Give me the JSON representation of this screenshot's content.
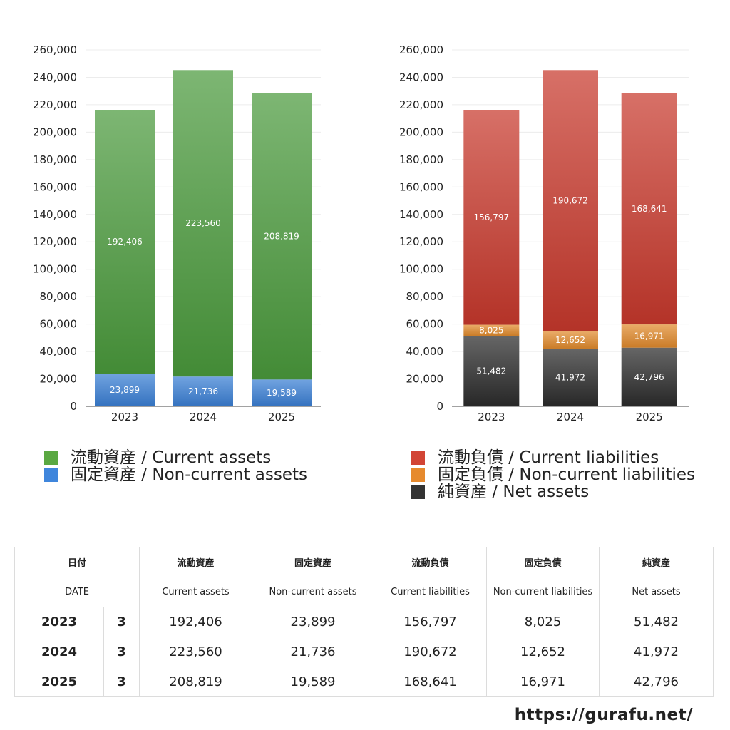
{
  "chart_data": [
    {
      "type": "bar",
      "stacked": true,
      "categories": [
        "2023",
        "2024",
        "2025"
      ],
      "ylim": [
        0,
        260000
      ],
      "yticks": [
        "0",
        "20,000",
        "40,000",
        "60,000",
        "80,000",
        "100,000",
        "120,000",
        "140,000",
        "160,000",
        "180,000",
        "200,000",
        "220,000",
        "240,000",
        "260,000"
      ],
      "grid": true,
      "series": [
        {
          "name": "固定資産 / Non-current assets",
          "values": [
            23899,
            21736,
            19589
          ],
          "labels": [
            "23,899",
            "21,736",
            "19,589"
          ],
          "color": "#3a7fd4"
        },
        {
          "name": "流動資産 / Current assets",
          "values": [
            192406,
            223560,
            208819
          ],
          "labels": [
            "192,406",
            "223,560",
            "208,819"
          ],
          "color": "#4a9a3c"
        }
      ]
    },
    {
      "type": "bar",
      "stacked": true,
      "categories": [
        "2023",
        "2024",
        "2025"
      ],
      "ylim": [
        0,
        260000
      ],
      "yticks": [
        "0",
        "20,000",
        "40,000",
        "60,000",
        "80,000",
        "100,000",
        "120,000",
        "140,000",
        "160,000",
        "180,000",
        "200,000",
        "220,000",
        "240,000",
        "260,000"
      ],
      "grid": true,
      "series": [
        {
          "name": "純資産 / Net assets",
          "values": [
            51482,
            41972,
            42796
          ],
          "labels": [
            "51,482",
            "41,972",
            "42,796"
          ],
          "color": "#2b2b2b"
        },
        {
          "name": "固定負債 / Non-current liabilities",
          "values": [
            8025,
            12652,
            16971
          ],
          "labels": [
            "8,025",
            "12,652",
            "16,971"
          ],
          "color": "#e08a2c"
        },
        {
          "name": "流動負債 / Current liabilities",
          "values": [
            156797,
            190672,
            168641
          ],
          "labels": [
            "156,797",
            "190,672",
            "168,641"
          ],
          "color": "#c8392c"
        }
      ]
    }
  ],
  "legend_left": [
    {
      "label": "流動資産 / Current assets",
      "color": "#5aa842"
    },
    {
      "label": "固定資産 / Non-current assets",
      "color": "#3f86dc"
    }
  ],
  "legend_right": [
    {
      "label": "流動負債 / Current liabilities",
      "color": "#d24535"
    },
    {
      "label": "固定負債 / Non-current liabilities",
      "color": "#e68a2e"
    },
    {
      "label": "純資産 / Net assets",
      "color": "#333333"
    }
  ],
  "table": {
    "header_jp": {
      "date": "日付",
      "current_assets": "流動資産",
      "noncurrent_assets": "固定資産",
      "current_liabilities": "流動負債",
      "noncurrent_liabilities": "固定負債",
      "net_assets": "純資産"
    },
    "header_en": {
      "date": "DATE",
      "current_assets": "Current assets",
      "noncurrent_assets": "Non-current assets",
      "current_liabilities": "Current liabilities",
      "noncurrent_liabilities": "Non-current liabilities",
      "net_assets": "Net assets"
    },
    "rows": [
      {
        "year": "2023",
        "month": "3",
        "current_assets": "192,406",
        "noncurrent_assets": "23,899",
        "current_liabilities": "156,797",
        "noncurrent_liabilities": "8,025",
        "net_assets": "51,482"
      },
      {
        "year": "2024",
        "month": "3",
        "current_assets": "223,560",
        "noncurrent_assets": "21,736",
        "current_liabilities": "190,672",
        "noncurrent_liabilities": "12,652",
        "net_assets": "41,972"
      },
      {
        "year": "2025",
        "month": "3",
        "current_assets": "208,819",
        "noncurrent_assets": "19,589",
        "current_liabilities": "168,641",
        "noncurrent_liabilities": "16,971",
        "net_assets": "42,796"
      }
    ]
  },
  "footer": {
    "url": "https://gurafu.net/"
  }
}
